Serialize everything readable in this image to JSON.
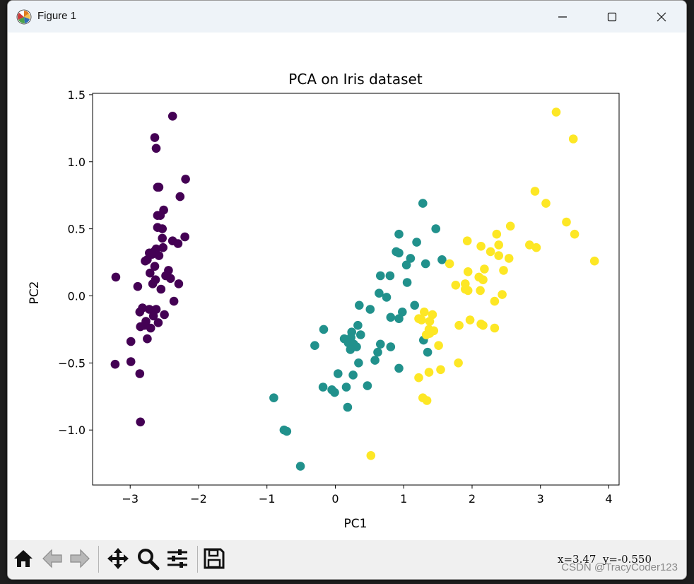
{
  "window": {
    "title": "Figure 1"
  },
  "toolbar": {
    "buttons": [
      {
        "name": "home-button",
        "icon": "home-icon"
      },
      {
        "name": "back-button",
        "icon": "arrow-left-icon"
      },
      {
        "name": "forward-button",
        "icon": "arrow-right-icon"
      },
      {
        "name": "pan-button",
        "icon": "move-icon"
      },
      {
        "name": "zoom-button",
        "icon": "magnifier-icon"
      },
      {
        "name": "configure-subplots-button",
        "icon": "sliders-icon"
      },
      {
        "name": "save-button",
        "icon": "floppy-icon"
      }
    ],
    "coordinates": "x=3.47  y=-0.550"
  },
  "watermark": "CSDN @TracyCoder123",
  "chart_data": {
    "type": "scatter",
    "title": "PCA on Iris dataset",
    "xlabel": "PC1",
    "ylabel": "PC2",
    "xlim": [
      -3.55,
      4.15
    ],
    "ylim": [
      -1.41,
      1.51
    ],
    "xticks": [
      -3,
      -2,
      -1,
      0,
      1,
      2,
      3,
      4
    ],
    "yticks": [
      -1.0,
      -0.5,
      0.0,
      0.5,
      1.0,
      1.5
    ],
    "xtick_labels": [
      "−3",
      "−2",
      "−1",
      "0",
      "1",
      "2",
      "3",
      "4"
    ],
    "ytick_labels": [
      "−1.0",
      "−0.5",
      "0.0",
      "0.5",
      "1.0",
      "1.5"
    ],
    "grid": false,
    "colors": [
      "#440154",
      "#21918c",
      "#fde725"
    ],
    "series": [
      {
        "color": "#440154",
        "points": [
          [
            -2.38,
            1.34
          ],
          [
            -2.64,
            1.18
          ],
          [
            -2.62,
            1.1
          ],
          [
            -2.19,
            0.87
          ],
          [
            -2.6,
            0.81
          ],
          [
            -2.58,
            0.81
          ],
          [
            -2.27,
            0.74
          ],
          [
            -2.51,
            0.64
          ],
          [
            -2.6,
            0.6
          ],
          [
            -2.56,
            0.6
          ],
          [
            -2.6,
            0.51
          ],
          [
            -2.53,
            0.5
          ],
          [
            -2.2,
            0.44
          ],
          [
            -2.53,
            0.43
          ],
          [
            -2.38,
            0.41
          ],
          [
            -2.3,
            0.39
          ],
          [
            -2.52,
            0.36
          ],
          [
            -2.62,
            0.35
          ],
          [
            -2.65,
            0.33
          ],
          [
            -2.72,
            0.32
          ],
          [
            -2.68,
            0.31
          ],
          [
            -2.58,
            0.3
          ],
          [
            -2.75,
            0.27
          ],
          [
            -2.78,
            0.26
          ],
          [
            -2.64,
            0.22
          ],
          [
            -2.44,
            0.19
          ],
          [
            -2.71,
            0.17
          ],
          [
            -3.21,
            0.14
          ],
          [
            -2.48,
            0.15
          ],
          [
            -2.63,
            0.12
          ],
          [
            -2.41,
            0.13
          ],
          [
            -2.67,
            0.09
          ],
          [
            -2.29,
            0.09
          ],
          [
            -2.89,
            0.07
          ],
          [
            -2.55,
            0.05
          ],
          [
            -2.36,
            -0.04
          ],
          [
            -2.72,
            -0.1
          ],
          [
            -2.62,
            -0.1
          ],
          [
            -2.82,
            -0.09
          ],
          [
            -2.86,
            -0.12
          ],
          [
            -2.66,
            -0.15
          ],
          [
            -2.5,
            -0.14
          ],
          [
            -2.77,
            -0.19
          ],
          [
            -2.59,
            -0.2
          ],
          [
            -2.79,
            -0.22
          ],
          [
            -2.85,
            -0.23
          ],
          [
            -2.7,
            -0.24
          ],
          [
            -2.75,
            -0.32
          ],
          [
            -2.99,
            -0.34
          ],
          [
            -2.99,
            -0.49
          ],
          [
            -3.22,
            -0.51
          ],
          [
            -2.86,
            -0.58
          ],
          [
            -2.85,
            -0.94
          ]
        ]
      },
      {
        "color": "#21918c",
        "points": [
          [
            1.28,
            0.69
          ],
          [
            1.47,
            0.5
          ],
          [
            0.93,
            0.46
          ],
          [
            1.19,
            0.4
          ],
          [
            0.89,
            0.33
          ],
          [
            0.93,
            0.32
          ],
          [
            1.1,
            0.28
          ],
          [
            1.56,
            0.27
          ],
          [
            1.32,
            0.24
          ],
          [
            1.04,
            0.23
          ],
          [
            0.66,
            0.15
          ],
          [
            0.8,
            0.15
          ],
          [
            1.05,
            0.1
          ],
          [
            0.64,
            0.02
          ],
          [
            0.75,
            -0.01
          ],
          [
            0.35,
            -0.07
          ],
          [
            1.16,
            -0.07
          ],
          [
            0.51,
            -0.1
          ],
          [
            0.98,
            -0.12
          ],
          [
            0.81,
            -0.16
          ],
          [
            0.93,
            -0.17
          ],
          [
            0.33,
            -0.22
          ],
          [
            -0.17,
            -0.25
          ],
          [
            0.24,
            -0.27
          ],
          [
            0.37,
            -0.29
          ],
          [
            0.23,
            -0.31
          ],
          [
            0.13,
            -0.32
          ],
          [
            0.19,
            -0.35
          ],
          [
            0.27,
            -0.36
          ],
          [
            0.31,
            -0.38
          ],
          [
            1.29,
            -0.33
          ],
          [
            -0.3,
            -0.37
          ],
          [
            0.66,
            -0.36
          ],
          [
            0.81,
            -0.38
          ],
          [
            0.22,
            -0.4
          ],
          [
            1.35,
            -0.42
          ],
          [
            0.62,
            -0.42
          ],
          [
            0.58,
            -0.48
          ],
          [
            0.34,
            -0.5
          ],
          [
            0.93,
            -0.54
          ],
          [
            0.04,
            -0.58
          ],
          [
            0.26,
            -0.59
          ],
          [
            0.47,
            -0.67
          ],
          [
            -0.18,
            -0.68
          ],
          [
            -0.05,
            -0.7
          ],
          [
            0.16,
            -0.68
          ],
          [
            -0.01,
            -0.72
          ],
          [
            -0.9,
            -0.76
          ],
          [
            0.18,
            -0.83
          ],
          [
            -0.75,
            -1.0
          ],
          [
            -0.71,
            -1.01
          ],
          [
            -0.51,
            -1.27
          ]
        ]
      },
      {
        "color": "#fde725",
        "points": [
          [
            3.23,
            1.37
          ],
          [
            3.48,
            1.17
          ],
          [
            2.92,
            0.78
          ],
          [
            3.08,
            0.69
          ],
          [
            2.56,
            0.52
          ],
          [
            3.38,
            0.55
          ],
          [
            3.5,
            0.46
          ],
          [
            2.36,
            0.46
          ],
          [
            1.93,
            0.41
          ],
          [
            2.13,
            0.37
          ],
          [
            2.39,
            0.38
          ],
          [
            2.27,
            0.33
          ],
          [
            2.84,
            0.38
          ],
          [
            2.94,
            0.36
          ],
          [
            2.39,
            0.3
          ],
          [
            2.54,
            0.28
          ],
          [
            1.67,
            0.24
          ],
          [
            3.79,
            0.26
          ],
          [
            2.18,
            0.2
          ],
          [
            1.94,
            0.18
          ],
          [
            2.46,
            0.19
          ],
          [
            2.1,
            0.14
          ],
          [
            2.16,
            0.12
          ],
          [
            1.9,
            0.09
          ],
          [
            2.12,
            0.04
          ],
          [
            1.76,
            0.08
          ],
          [
            1.9,
            0.05
          ],
          [
            1.94,
            0.04
          ],
          [
            2.44,
            0.01
          ],
          [
            2.33,
            -0.04
          ],
          [
            1.3,
            -0.12
          ],
          [
            1.42,
            -0.14
          ],
          [
            1.22,
            -0.17
          ],
          [
            1.26,
            -0.18
          ],
          [
            1.38,
            -0.19
          ],
          [
            1.97,
            -0.18
          ],
          [
            2.13,
            -0.21
          ],
          [
            1.81,
            -0.22
          ],
          [
            2.16,
            -0.22
          ],
          [
            2.33,
            -0.24
          ],
          [
            1.37,
            -0.25
          ],
          [
            1.44,
            -0.26
          ],
          [
            1.33,
            -0.29
          ],
          [
            1.38,
            -0.28
          ],
          [
            1.51,
            -0.37
          ],
          [
            1.8,
            -0.5
          ],
          [
            1.54,
            -0.55
          ],
          [
            1.37,
            -0.57
          ],
          [
            1.22,
            -0.61
          ],
          [
            1.28,
            -0.76
          ],
          [
            1.34,
            -0.78
          ],
          [
            0.52,
            -1.19
          ]
        ]
      }
    ]
  }
}
